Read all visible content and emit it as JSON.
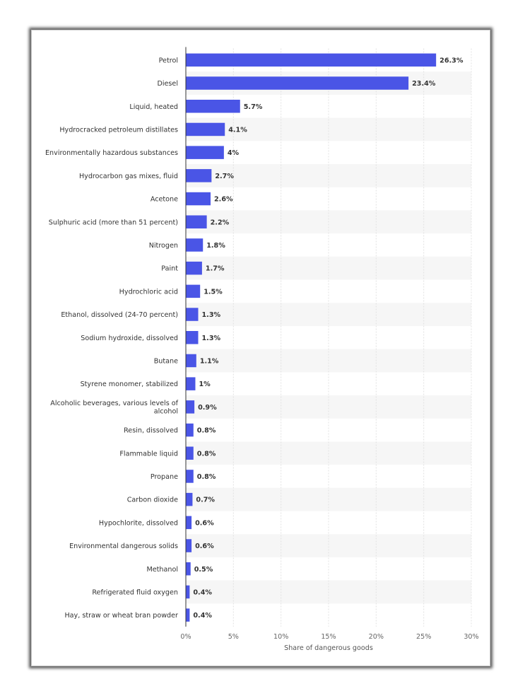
{
  "chart_data": {
    "type": "bar",
    "orientation": "horizontal",
    "xlabel": "Share of dangerous goods",
    "xlim": [
      0,
      30
    ],
    "ticks": [
      "0%",
      "5%",
      "10%",
      "15%",
      "20%",
      "25%",
      "30%"
    ],
    "grid": true,
    "bar_color": "#4a55e6",
    "categories": [
      "Petrol",
      "Diesel",
      "Liquid, heated",
      "Hydrocracked petroleum distillates",
      "Environmentally hazardous substances",
      "Hydrocarbon gas mixes, fluid",
      "Acetone",
      "Sulphuric acid (more than 51 percent)",
      "Nitrogen",
      "Paint",
      "Hydrochloric acid",
      "Ethanol, dissolved (24-70 percent)",
      "Sodium hydroxide, dissolved",
      "Butane",
      "Styrene monomer, stabilized",
      "Alcoholic beverages, various levels of alcohol",
      "Resin, dissolved",
      "Flammable liquid",
      "Propane",
      "Carbon dioxide",
      "Hypochlorite, dissolved",
      "Environmental dangerous solids",
      "Methanol",
      "Refrigerated fluid oxygen",
      "Hay, straw or wheat bran powder"
    ],
    "values": [
      26.3,
      23.4,
      5.7,
      4.1,
      4,
      2.7,
      2.6,
      2.2,
      1.8,
      1.7,
      1.5,
      1.3,
      1.3,
      1.1,
      1,
      0.9,
      0.8,
      0.8,
      0.8,
      0.7,
      0.6,
      0.6,
      0.5,
      0.4,
      0.4
    ],
    "value_labels": [
      "26.3%",
      "23.4%",
      "5.7%",
      "4.1%",
      "4%",
      "2.7%",
      "2.6%",
      "2.2%",
      "1.8%",
      "1.7%",
      "1.5%",
      "1.3%",
      "1.3%",
      "1.1%",
      "1%",
      "0.9%",
      "0.8%",
      "0.8%",
      "0.8%",
      "0.7%",
      "0.6%",
      "0.6%",
      "0.5%",
      "0.4%",
      "0.4%"
    ]
  }
}
